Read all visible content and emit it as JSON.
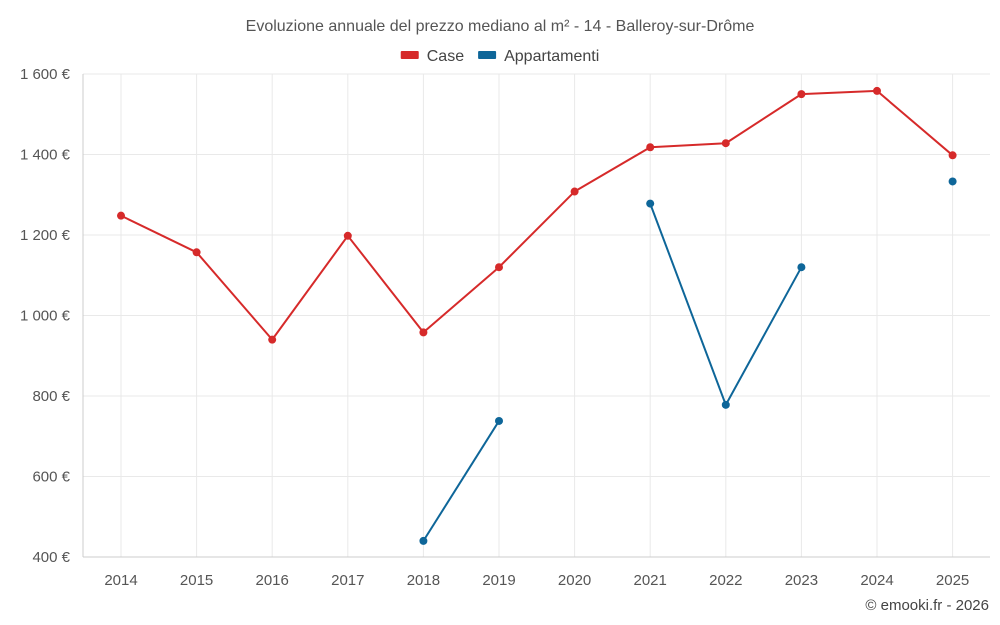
{
  "chart_data": {
    "type": "line",
    "title": "Evoluzione annuale del prezzo mediano al m² - 14 - Balleroy-sur-Drôme",
    "categories": [
      "2014",
      "2015",
      "2016",
      "2017",
      "2018",
      "2019",
      "2020",
      "2021",
      "2022",
      "2023",
      "2024",
      "2025"
    ],
    "ylim": [
      400,
      1600
    ],
    "yticks": [
      400,
      600,
      800,
      1000,
      1200,
      1400,
      1600
    ],
    "ytick_labels": [
      "400 €",
      "600 €",
      "800 €",
      "1 000 €",
      "1 200 €",
      "1 400 €",
      "1 600 €"
    ],
    "grid": true,
    "legend_position": "top-center",
    "series": [
      {
        "name": "Case",
        "color": "#d62a2a",
        "values": [
          1248,
          1157,
          940,
          1198,
          958,
          1120,
          1308,
          1418,
          1428,
          1550,
          1558,
          1398
        ]
      },
      {
        "name": "Appartamenti",
        "color": "#0e6699",
        "values": [
          null,
          null,
          null,
          null,
          440,
          738,
          null,
          1278,
          778,
          1120,
          null,
          1333
        ]
      }
    ]
  },
  "credit": "© emooki.fr - 2026"
}
